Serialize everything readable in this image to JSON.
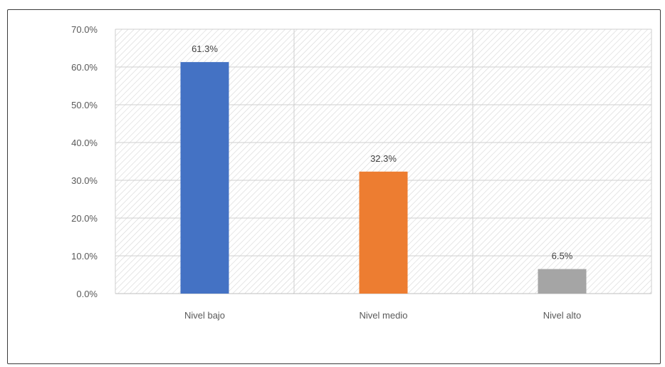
{
  "chart_data": {
    "type": "bar",
    "categories": [
      "Nivel bajo",
      "Nivel medio",
      "Nivel alto"
    ],
    "values": [
      61.3,
      32.3,
      6.5
    ],
    "data_labels": [
      "61.3%",
      "32.3%",
      "6.5%"
    ],
    "colors": [
      "#4472c4",
      "#ed7d31",
      "#a5a5a5"
    ],
    "ylim": [
      0,
      70
    ],
    "yticks": [
      0,
      10,
      20,
      30,
      40,
      50,
      60,
      70
    ],
    "ytick_labels": [
      "0.0%",
      "10.0%",
      "20.0%",
      "30.0%",
      "40.0%",
      "50.0%",
      "60.0%",
      "70.0%"
    ],
    "title": "",
    "xlabel": "",
    "ylabel": "",
    "grid": true,
    "plot_area_pattern": "diagonal-hatch",
    "legend": "none"
  }
}
